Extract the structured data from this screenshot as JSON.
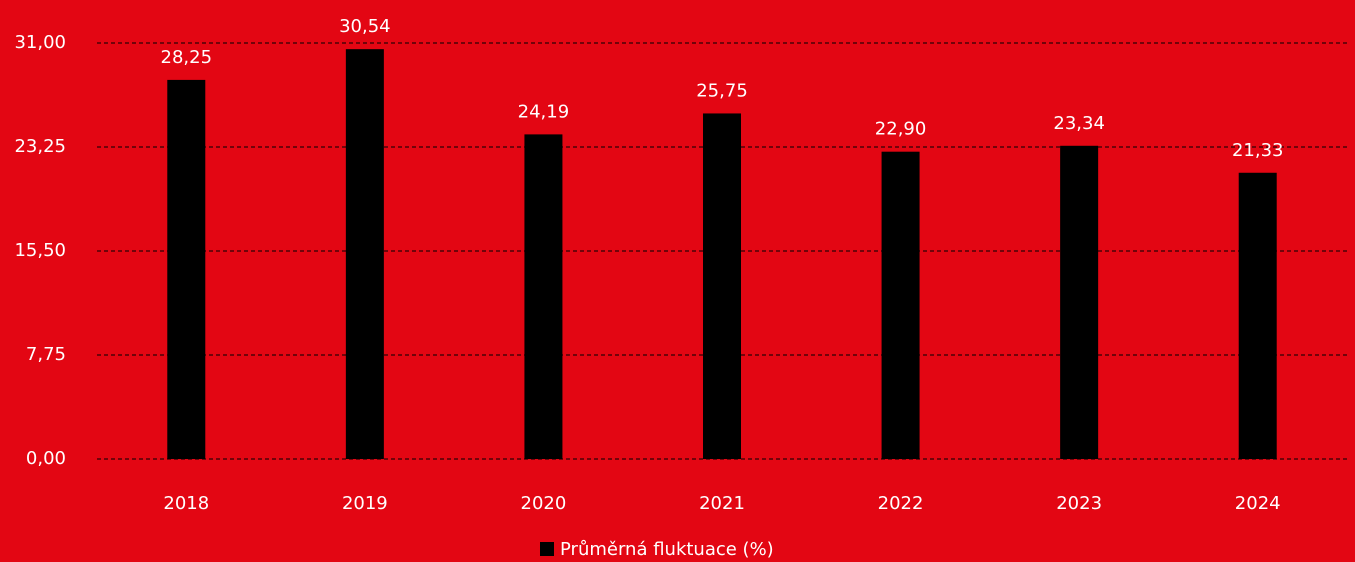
{
  "chart_data": {
    "type": "bar",
    "categories": [
      "2018",
      "2019",
      "2020",
      "2021",
      "2022",
      "2023",
      "2024"
    ],
    "series": [
      {
        "name": "Průměrná fluktuace (%)",
        "color": "#000000",
        "values": [
          28.25,
          30.54,
          24.19,
          25.75,
          22.9,
          23.34,
          21.33
        ],
        "value_labels": [
          "28,25",
          "30,54",
          "24,19",
          "25,75",
          "22,90",
          "23,34",
          "21,33"
        ]
      }
    ],
    "ylim": [
      0,
      31
    ],
    "yticks": [
      {
        "value": 0,
        "label": "0,00"
      },
      {
        "value": 7.75,
        "label": "7,75"
      },
      {
        "value": 15.5,
        "label": "15,50"
      },
      {
        "value": 23.25,
        "label": "23,25"
      },
      {
        "value": 31,
        "label": "31,00"
      }
    ],
    "grid": true,
    "legend": "bottom"
  }
}
